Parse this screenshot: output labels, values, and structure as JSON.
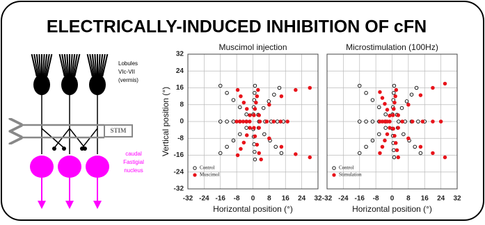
{
  "title": "ELECTRICALLY-INDUCED INHIBITION OF cFN",
  "diagram": {
    "lobules_label": [
      "Lobules",
      "VIc-VII",
      "(vermis)"
    ],
    "stim_label": "STIM",
    "nucleus_label": [
      "caudal",
      "Fastigial",
      "nucleus"
    ]
  },
  "chart_data": [
    {
      "type": "scatter",
      "title": "Muscimol injection",
      "x_label": "Horizontal position (°)",
      "y_label": "Vertical position (°)",
      "xlim": [
        -32,
        32
      ],
      "ylim": [
        -32,
        32
      ],
      "xticks": [
        -32,
        -24,
        -16,
        -8,
        0,
        8,
        16,
        24,
        32
      ],
      "yticks": [
        -32,
        -24,
        -16,
        -8,
        0,
        8,
        16,
        24,
        32
      ],
      "grid": true,
      "legend": "lower left",
      "series": [
        {
          "name": "Control",
          "color": "#000000",
          "filled": false,
          "x": [
            -3.2,
            -6.4,
            -9.6,
            -12.8,
            -16,
            0.2,
            0.4,
            0.6,
            0.8,
            1,
            2.6,
            5.2,
            7.8,
            10.4,
            13,
            3,
            6,
            9,
            12,
            15,
            2.8,
            5.6,
            8.4,
            11.2,
            14,
            0.2,
            0.4,
            0.6,
            0.8,
            1,
            -3.2,
            -6.4,
            -9.6,
            -12.8,
            -16,
            -3.2,
            -6.4,
            -9.6,
            -12.8,
            -16
          ],
          "y": [
            3.4,
            6.8,
            10.2,
            13.6,
            17,
            3.4,
            6.8,
            10.2,
            13.6,
            17,
            3.2,
            6.4,
            9.6,
            12.8,
            16,
            0,
            0,
            0,
            0,
            0,
            -3,
            -6,
            -9,
            -12,
            -15,
            -3.6,
            -7.2,
            -10.8,
            -14.4,
            -18,
            -3,
            -6,
            -9,
            -12,
            -15,
            0,
            0,
            0,
            0,
            0
          ]
        },
        {
          "name": "Muscimol",
          "color": "#e8141b",
          "filled": true,
          "x": [
            3,
            8,
            14,
            21,
            28,
            3.4,
            6.8,
            10.2,
            13.6,
            17,
            3,
            8,
            14,
            21,
            28,
            0.5,
            1,
            2,
            3,
            4,
            -1.5,
            -3,
            -4.5,
            -6,
            -7.5,
            0.5,
            1,
            1.5,
            2,
            2.5,
            -1.5,
            -3,
            -4.5,
            -6,
            -7.5,
            -1.6,
            -3.2,
            -4.8,
            -6.4,
            -8
          ],
          "y": [
            3,
            8,
            12,
            15,
            16,
            0,
            0,
            0,
            0,
            0,
            -3,
            -8,
            -12,
            -15.5,
            -17,
            -3,
            -7,
            -11,
            -15,
            -18,
            -3,
            -6.5,
            -10,
            -13,
            -16,
            3,
            6,
            9,
            12,
            15,
            3,
            6,
            9,
            12,
            15,
            0,
            0,
            0,
            0,
            0
          ]
        }
      ]
    },
    {
      "type": "scatter",
      "title": "Microstimulation (100Hz)",
      "x_label": "Horizontal position (°)",
      "xlim": [
        -32,
        32
      ],
      "ylim": [
        -32,
        32
      ],
      "xticks": [
        -32,
        -24,
        -16,
        -8,
        0,
        8,
        16,
        24,
        32
      ],
      "yticks": [
        -32,
        -24,
        -16,
        -8,
        0,
        8,
        16,
        24,
        32
      ],
      "grid": true,
      "legend": "lower left",
      "series": [
        {
          "name": "Control",
          "color": "#000000",
          "filled": false,
          "x": [
            -3.2,
            -6.4,
            -9.6,
            -12.8,
            -16,
            0.2,
            0.4,
            0.6,
            0.8,
            1,
            2.4,
            4.8,
            7.2,
            9.6,
            12,
            3.2,
            6.4,
            9.6,
            12.8,
            16,
            2.8,
            5.6,
            8.4,
            11.2,
            14,
            0.2,
            0.4,
            0.6,
            0.8,
            1,
            -3.2,
            -6.4,
            -9.6,
            -12.8,
            -16,
            -3.2,
            -6.4,
            -9.6,
            -12.8,
            -16
          ],
          "y": [
            3.4,
            6.8,
            10.2,
            13.6,
            17,
            3.4,
            6.8,
            10.2,
            13.6,
            17,
            3.2,
            6.4,
            9.6,
            12.8,
            16,
            0,
            0,
            0,
            0,
            0,
            -3,
            -6,
            -9,
            -12,
            -15,
            -3.4,
            -6.8,
            -10.2,
            -13.6,
            -17,
            -3,
            -6,
            -9,
            -12,
            -15,
            0,
            0,
            0,
            0,
            0
          ]
        },
        {
          "name": "Stimulation",
          "color": "#e8141b",
          "filled": true,
          "x": [
            3,
            8,
            14,
            20,
            26,
            5,
            10,
            15,
            20,
            24,
            3,
            8,
            14,
            20,
            26,
            0.6,
            1.2,
            1.8,
            2.4,
            3,
            -1.2,
            -2.4,
            -3.6,
            -4.8,
            -6,
            0.4,
            0.8,
            1.2,
            1.6,
            2,
            -1.2,
            -2.4,
            -3.6,
            -4.8,
            -6,
            -1.2,
            -2.4,
            -3.6,
            -4.8,
            -6
          ],
          "y": [
            3,
            8,
            12.5,
            16,
            18,
            0,
            0,
            0,
            0,
            0,
            -3,
            -8,
            -12,
            -15,
            -17,
            -3.4,
            -6.8,
            -10.2,
            -13.6,
            -17,
            -3,
            -6,
            -9,
            -12,
            -15,
            3,
            6,
            9,
            12,
            15,
            2.8,
            5.6,
            8.4,
            11.2,
            14,
            0,
            0,
            0,
            0,
            0
          ]
        }
      ]
    }
  ]
}
